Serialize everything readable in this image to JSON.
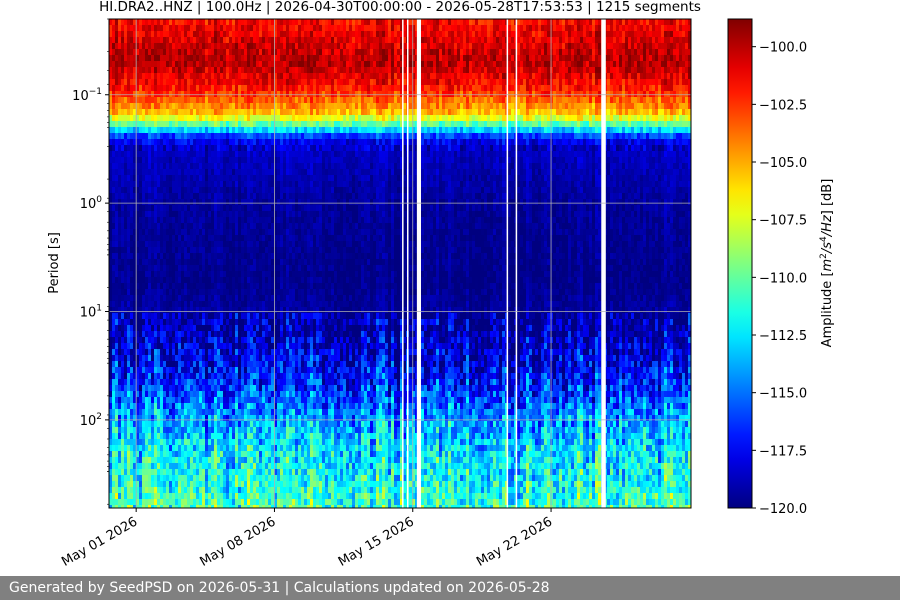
{
  "chart_data": {
    "type": "heatmap",
    "title": "HI.DRA2..HNZ | 100.0Hz | 2026-04-30T00:00:00 - 2026-05-28T17:53:53 | 1215 segments",
    "ylabel": "Period [s]",
    "yscale": "log",
    "yticks": [
      {
        "value": 0.1,
        "base": "10",
        "exp": "−1"
      },
      {
        "value": 1,
        "base": "10",
        "exp": "0"
      },
      {
        "value": 10,
        "base": "10",
        "exp": "1"
      },
      {
        "value": 100,
        "base": "10",
        "exp": "2"
      }
    ],
    "ylim": [
      0.02,
      650
    ],
    "xlim": [
      "2026-04-29T15:00:00",
      "2026-05-29T02:00:00"
    ],
    "xticks": [
      {
        "date": "2026-05-01",
        "label": "May 01 2026"
      },
      {
        "date": "2026-05-08",
        "label": "May 08 2026"
      },
      {
        "date": "2026-05-15",
        "label": "May 15 2026"
      },
      {
        "date": "2026-05-22",
        "label": "May 22 2026"
      }
    ],
    "grid": true,
    "colorbar": {
      "label": "Amplitude [m²/s⁴/Hz] [dB]",
      "label_main": "Amplitude [",
      "label_unit_m": "m",
      "label_exp_m": "2",
      "label_unit_s": "/s",
      "label_exp_s": "4",
      "label_unit_hz": "/Hz",
      "label_end": "] [dB]",
      "min": -120,
      "max": -98.8,
      "ticks": [
        {
          "value": -100.0,
          "label": "−100.0"
        },
        {
          "value": -102.5,
          "label": "−102.5"
        },
        {
          "value": -105.0,
          "label": "−105.0"
        },
        {
          "value": -107.5,
          "label": "−107.5"
        },
        {
          "value": -110.0,
          "label": "−110.0"
        },
        {
          "value": -112.5,
          "label": "−112.5"
        },
        {
          "value": -115.0,
          "label": "−115.0"
        },
        {
          "value": -117.5,
          "label": "−117.5"
        },
        {
          "value": -120.0,
          "label": "−120.0"
        }
      ]
    },
    "data_gaps": [
      {
        "start": "2026-05-14T11:00:00",
        "end": "2026-05-14T12:00:00"
      },
      {
        "start": "2026-05-14T17:00:00",
        "end": "2026-05-14T18:30:00"
      },
      {
        "start": "2026-05-15T05:00:00",
        "end": "2026-05-15T10:00:00"
      },
      {
        "start": "2026-05-19T18:00:00",
        "end": "2026-05-19T19:00:00"
      },
      {
        "start": "2026-05-20T05:00:00",
        "end": "2026-05-20T06:00:00"
      },
      {
        "start": "2026-05-24T13:00:00",
        "end": "2026-05-24T18:30:00"
      }
    ],
    "spectral_profile": [
      {
        "period": 0.02,
        "amplitude": -101.5
      },
      {
        "period": 0.05,
        "amplitude": -99.8
      },
      {
        "period": 0.09,
        "amplitude": -102.0
      },
      {
        "period": 0.15,
        "amplitude": -105.5
      },
      {
        "period": 0.2,
        "amplitude": -111.5
      },
      {
        "period": 0.25,
        "amplitude": -117.0
      },
      {
        "period": 0.3,
        "amplitude": -118.5
      },
      {
        "period": 1,
        "amplitude": -119.4
      },
      {
        "period": 5,
        "amplitude": -119.8
      },
      {
        "period": 15,
        "amplitude": -119.0
      },
      {
        "period": 30,
        "amplitude": -117.8
      },
      {
        "period": 60,
        "amplitude": -116.0
      },
      {
        "period": 100,
        "amplitude": -114.0
      },
      {
        "period": 200,
        "amplitude": -112.5
      },
      {
        "period": 400,
        "amplitude": -111.5
      },
      {
        "period": 650,
        "amplitude": -110.5
      }
    ]
  },
  "footer": {
    "text": "Generated by SeedPSD on 2026-05-31 | Calculations updated on 2026-05-28"
  }
}
